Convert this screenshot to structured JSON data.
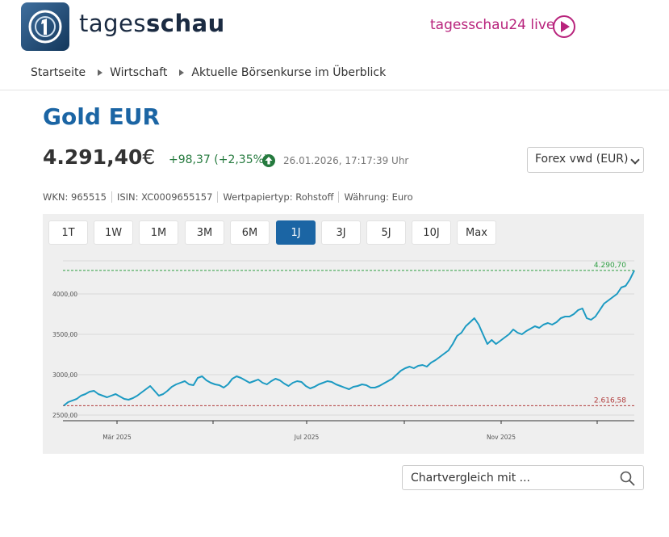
{
  "header": {
    "brand_light": "tages",
    "brand_bold": "schau",
    "live_label": "tagesschau24 live"
  },
  "breadcrumb": [
    "Startseite",
    "Wirtschaft",
    "Aktuelle Börsenkurse im Überblick"
  ],
  "instrument": {
    "title": "Gold EUR",
    "price": "4.291,40",
    "currency": "€",
    "change": "+98,37 (+2,35%)",
    "timestamp": "26.01.2026, 17:17:39 Uhr",
    "exchange": "Forex vwd (EUR)",
    "wkn": "WKN: 965515",
    "isin": "ISIN: XC0009655157",
    "type": "Wertpapiertyp: Rohstoff",
    "currency_info": "Währung: Euro"
  },
  "ranges": [
    "1T",
    "1W",
    "1M",
    "3M",
    "6M",
    "1J",
    "3J",
    "5J",
    "10J",
    "Max"
  ],
  "active_range": "1J",
  "compare": {
    "placeholder": "Chartvergleich mit ..."
  },
  "colors": {
    "brand": "#1b65a4",
    "positive": "#257a3e",
    "live": "#b8237c",
    "line": "#1c9ac2",
    "high": "#2e9e42",
    "low": "#b03a3a"
  },
  "chart_data": {
    "type": "line",
    "x_tick_labels": [
      "Mär 2025",
      "Jul 2025",
      "Nov 2025"
    ],
    "y_tick_labels": [
      "2500,00",
      "3000,00",
      "3500,00",
      "4000,00"
    ],
    "ylim": [
      2500,
      4300
    ],
    "high_label": "4.290,70",
    "low_label": "2.616,58",
    "high": 4290.7,
    "low": 2616.58,
    "series": [
      {
        "values": [
          2616.58,
          2660,
          2680,
          2700,
          2740,
          2760,
          2790,
          2800,
          2760,
          2740,
          2720,
          2740,
          2760,
          2730,
          2700,
          2690,
          2710,
          2740,
          2780,
          2820,
          2860,
          2800,
          2740,
          2760,
          2800,
          2850,
          2880,
          2900,
          2920,
          2880,
          2870,
          2960,
          2980,
          2930,
          2900,
          2880,
          2870,
          2840,
          2880,
          2950,
          2980,
          2960,
          2930,
          2900,
          2920,
          2940,
          2900,
          2880,
          2920,
          2950,
          2930,
          2890,
          2860,
          2900,
          2920,
          2910,
          2860,
          2830,
          2850,
          2880,
          2900,
          2920,
          2910,
          2880,
          2860,
          2840,
          2820,
          2850,
          2860,
          2880,
          2870,
          2840,
          2840,
          2860,
          2890,
          2920,
          2950,
          3000,
          3050,
          3080,
          3100,
          3080,
          3110,
          3120,
          3100,
          3150,
          3180,
          3220,
          3260,
          3300,
          3380,
          3480,
          3520,
          3600,
          3650,
          3700,
          3620,
          3500,
          3380,
          3430,
          3380,
          3420,
          3460,
          3500,
          3560,
          3520,
          3500,
          3540,
          3570,
          3600,
          3580,
          3620,
          3640,
          3620,
          3650,
          3700,
          3720,
          3720,
          3750,
          3800,
          3820,
          3700,
          3680,
          3720,
          3800,
          3880,
          3920,
          3960,
          4000,
          4080,
          4100,
          4180,
          4290.7
        ]
      }
    ]
  }
}
